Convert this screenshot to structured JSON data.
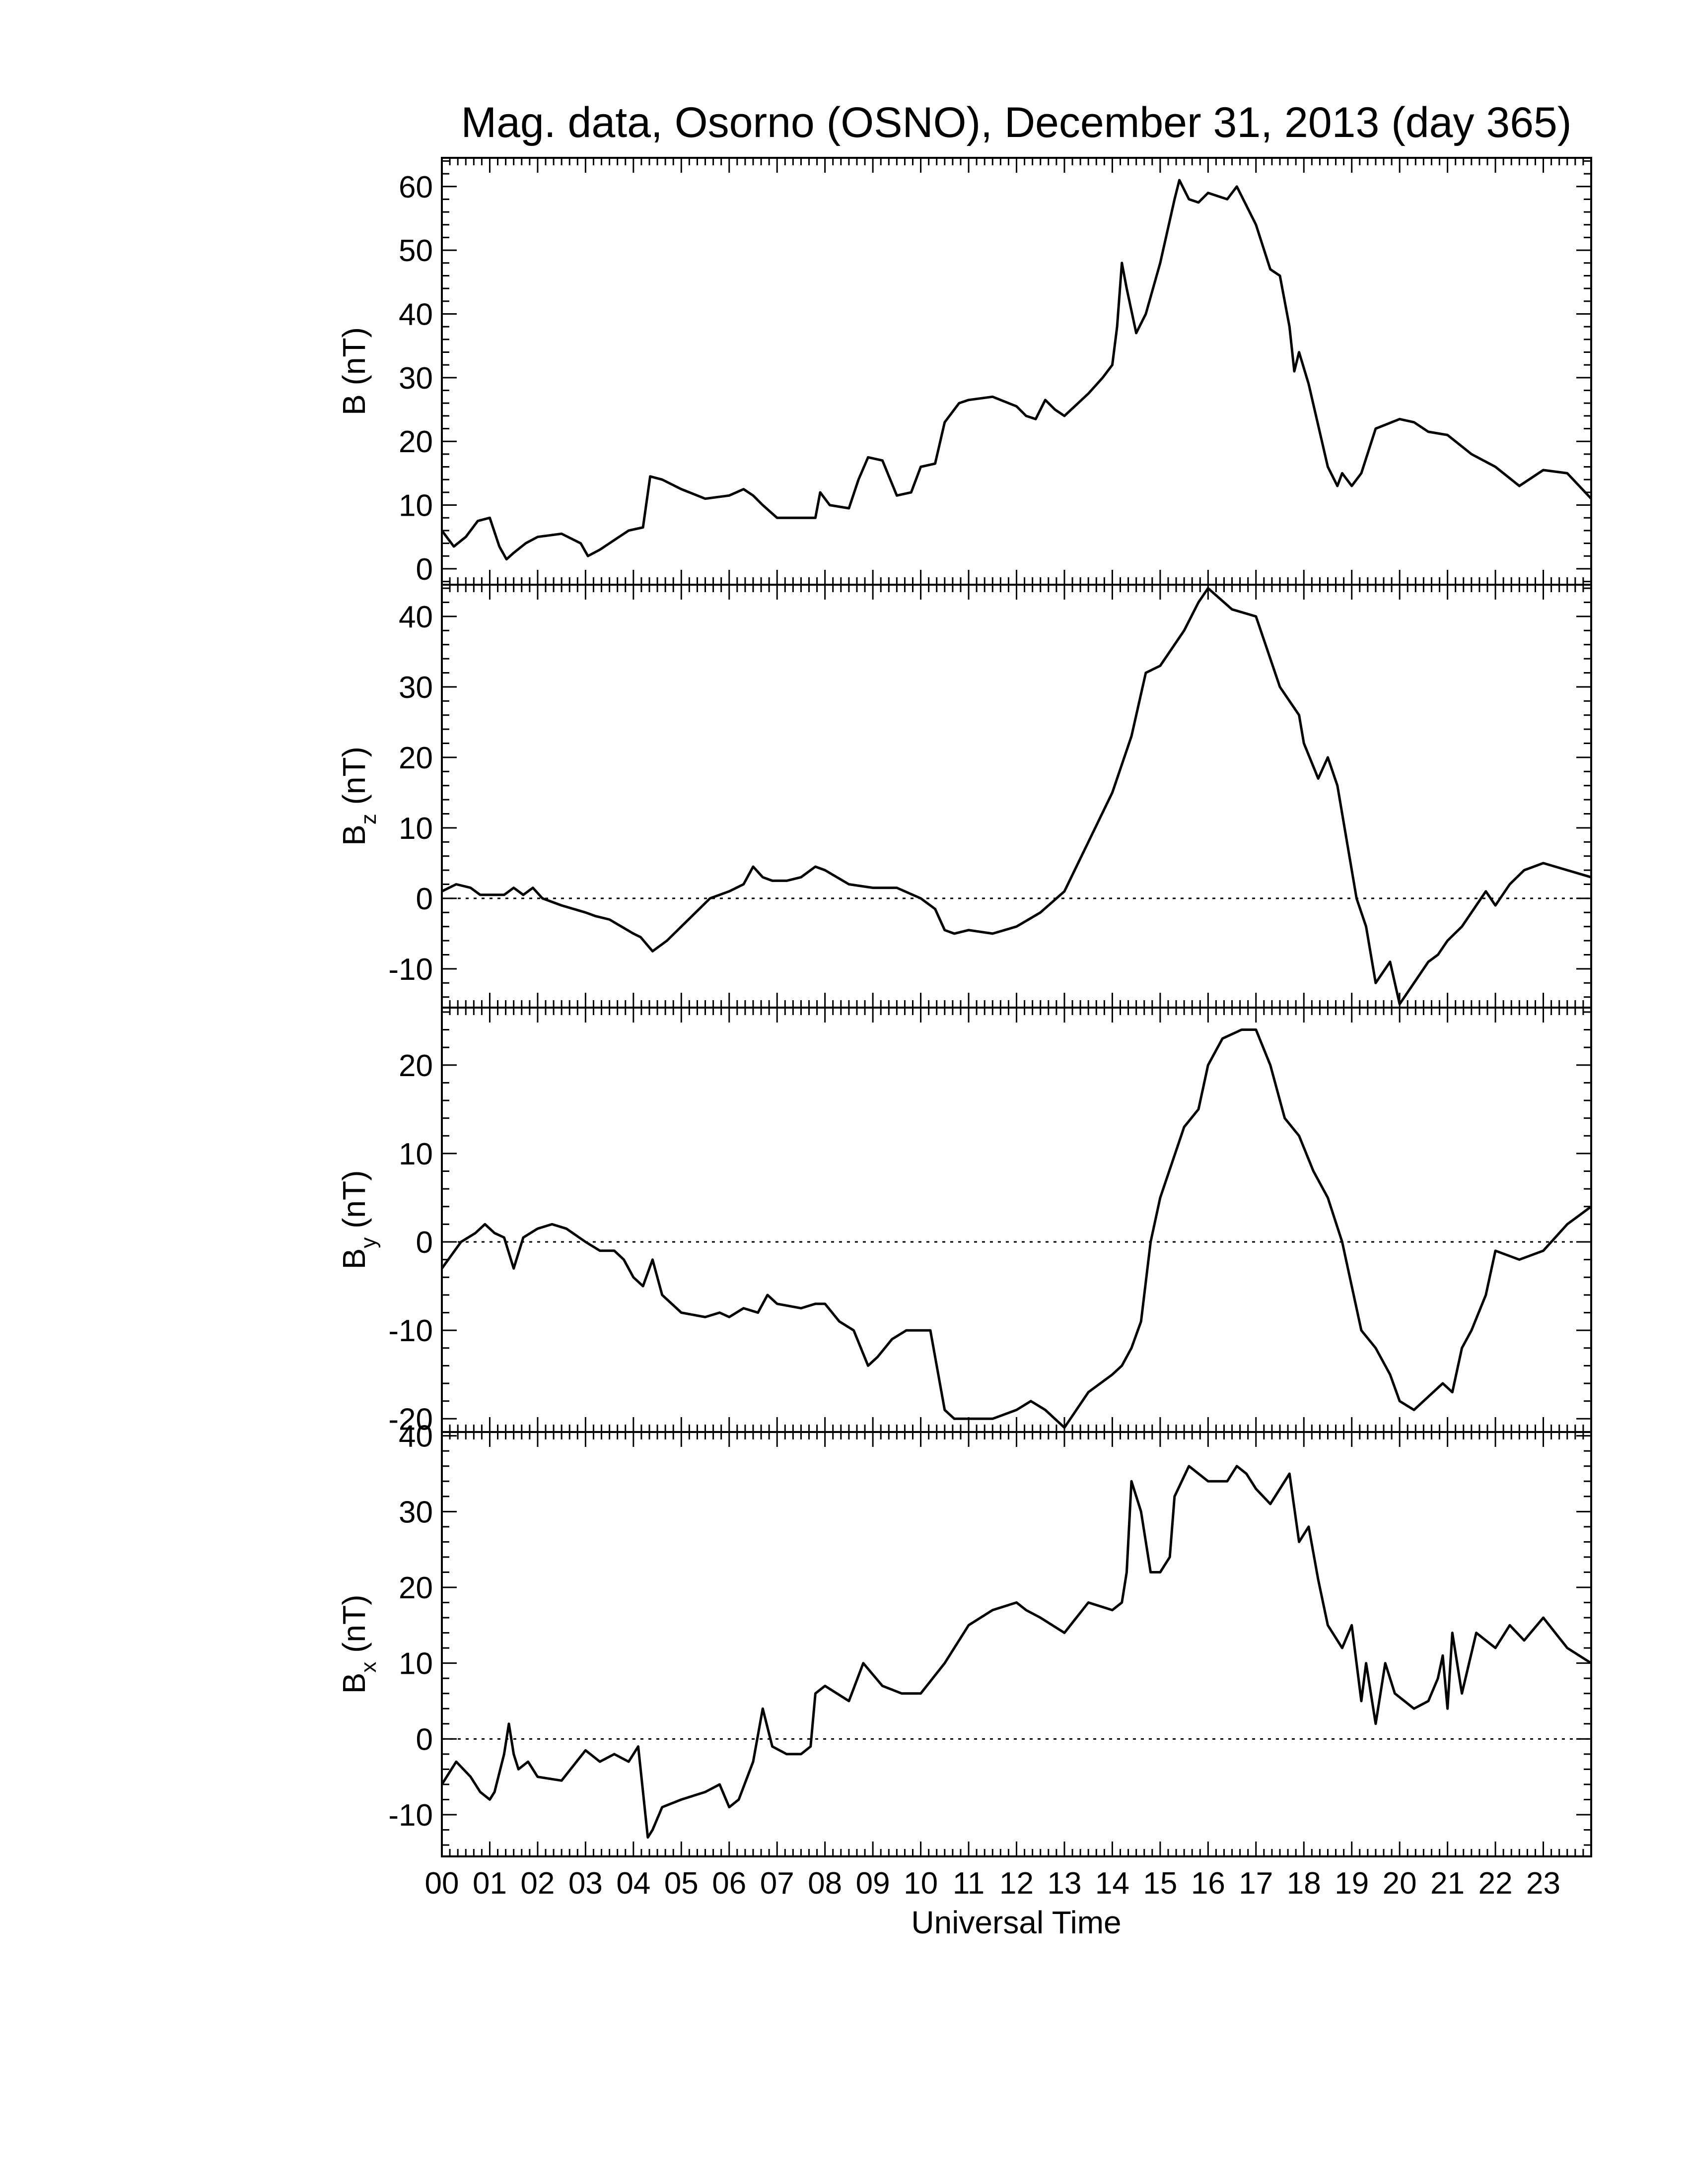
{
  "chart_data": {
    "type": "line",
    "title": "Mag. data, Osorno (OSNO), December 31, 2013 (day 365)",
    "xlabel": "Universal Time",
    "x_tick_labels": [
      "00",
      "01",
      "02",
      "03",
      "04",
      "05",
      "06",
      "07",
      "08",
      "09",
      "10",
      "11",
      "12",
      "13",
      "14",
      "15",
      "16",
      "17",
      "18",
      "19",
      "20",
      "21",
      "22",
      "23"
    ],
    "xlim": [
      0,
      24
    ],
    "panels": [
      {
        "ylabel": "B (nT)",
        "ylabel_main": "B",
        "ylabel_sub": "",
        "ylabel_unit": "(nT)",
        "ylim": [
          -2.5,
          64.5
        ],
        "yticks": [
          0,
          10,
          20,
          30,
          40,
          50,
          60
        ],
        "zero_line": false,
        "x": [
          0,
          0.25,
          0.5,
          0.75,
          1.0,
          1.2,
          1.35,
          1.5,
          1.75,
          2.0,
          2.5,
          2.9,
          3.05,
          3.3,
          3.6,
          3.9,
          4.2,
          4.35,
          4.6,
          5.0,
          5.5,
          6.0,
          6.3,
          6.5,
          6.7,
          7.0,
          7.5,
          7.8,
          7.9,
          8.1,
          8.5,
          8.7,
          8.9,
          9.2,
          9.5,
          9.8,
          10.0,
          10.3,
          10.5,
          10.8,
          11.0,
          11.5,
          12.0,
          12.2,
          12.4,
          12.6,
          12.8,
          13.0,
          13.5,
          13.8,
          14.0,
          14.1,
          14.2,
          14.3,
          14.5,
          14.7,
          15.0,
          15.3,
          15.4,
          15.6,
          15.8,
          16.0,
          16.4,
          16.6,
          16.8,
          17.0,
          17.3,
          17.5,
          17.7,
          17.8,
          17.9,
          18.1,
          18.5,
          18.7,
          18.8,
          19.0,
          19.2,
          19.5,
          20.0,
          20.3,
          20.6,
          21.0,
          21.5,
          22.0,
          22.5,
          23.0,
          23.5,
          24.0
        ],
        "values": [
          6,
          3.5,
          5,
          7.5,
          8,
          3.5,
          1.5,
          2.5,
          4,
          5,
          5.5,
          4,
          2,
          3,
          4.5,
          6,
          6.5,
          14.5,
          14,
          12.5,
          11,
          11.5,
          12.5,
          11.5,
          10,
          8,
          8,
          8,
          12,
          10,
          9.5,
          14,
          17.5,
          17,
          11.5,
          12,
          16,
          16.5,
          23,
          26,
          26.5,
          27,
          25.5,
          24,
          23.5,
          26.5,
          25,
          24,
          27.5,
          30,
          32,
          38,
          48,
          44,
          37,
          40,
          48,
          58,
          61,
          58,
          57.5,
          59,
          58,
          60,
          57,
          54,
          47,
          46,
          38,
          31,
          34,
          29,
          16,
          13,
          15,
          13,
          15,
          22,
          23.5,
          23,
          21.5,
          21,
          18,
          16,
          13,
          15.5,
          15,
          11
        ]
      },
      {
        "ylabel": "Bz (nT)",
        "ylabel_main": "B",
        "ylabel_sub": "z",
        "ylabel_unit": "(nT)",
        "ylim": [
          -15.5,
          44.5
        ],
        "yticks": [
          -10,
          0,
          10,
          20,
          30,
          40
        ],
        "zero_line": true,
        "x": [
          0,
          0.3,
          0.6,
          0.8,
          1.0,
          1.3,
          1.5,
          1.7,
          1.9,
          2.1,
          2.5,
          3.0,
          3.2,
          3.5,
          4.0,
          4.15,
          4.4,
          4.7,
          5.0,
          5.3,
          5.6,
          6.0,
          6.3,
          6.5,
          6.7,
          6.9,
          7.2,
          7.5,
          7.8,
          8.0,
          8.5,
          9.0,
          9.5,
          10.0,
          10.3,
          10.5,
          10.7,
          11.0,
          11.5,
          12.0,
          12.5,
          13.0,
          13.5,
          14.0,
          14.4,
          14.7,
          15.0,
          15.3,
          15.5,
          15.8,
          16.0,
          16.5,
          17.0,
          17.3,
          17.5,
          17.9,
          18.0,
          18.3,
          18.5,
          18.7,
          18.9,
          19.1,
          19.3,
          19.5,
          19.8,
          20.0,
          20.3,
          20.6,
          20.8,
          21.0,
          21.3,
          21.5,
          21.8,
          22.0,
          22.3,
          22.6,
          23.0,
          23.5,
          24.0
        ],
        "values": [
          1,
          2,
          1.5,
          0.5,
          0.5,
          0.5,
          1.5,
          0.5,
          1.5,
          0,
          -1,
          -2,
          -2.5,
          -3,
          -5,
          -5.5,
          -7.5,
          -6,
          -4,
          -2,
          0,
          1,
          2,
          4.5,
          3,
          2.5,
          2.5,
          3,
          4.5,
          4,
          2,
          1.5,
          1.5,
          0,
          -1.5,
          -4.5,
          -5,
          -4.5,
          -5,
          -4,
          -2,
          1,
          8,
          15,
          23,
          32,
          33,
          36,
          38,
          42,
          44,
          41,
          40,
          34,
          30,
          26,
          22,
          17,
          20,
          16,
          8,
          0,
          -4,
          -12,
          -9,
          -15,
          -12,
          -9,
          -8,
          -6,
          -4,
          -2,
          1,
          -1,
          2,
          4,
          5,
          4,
          3
        ]
      },
      {
        "ylabel": "By (nT)",
        "ylabel_main": "B",
        "ylabel_sub": "y",
        "ylabel_unit": "(nT)",
        "ylim": [
          -21.5,
          26.5
        ],
        "yticks": [
          -20,
          -10,
          0,
          10,
          20
        ],
        "zero_line": true,
        "x": [
          0,
          0.2,
          0.4,
          0.7,
          0.9,
          1.1,
          1.3,
          1.5,
          1.7,
          2.0,
          2.3,
          2.6,
          3.0,
          3.3,
          3.6,
          3.8,
          4.0,
          4.2,
          4.4,
          4.6,
          5.0,
          5.5,
          5.8,
          6.0,
          6.3,
          6.6,
          6.8,
          7.0,
          7.5,
          7.8,
          8.0,
          8.3,
          8.6,
          8.9,
          9.1,
          9.4,
          9.7,
          10.0,
          10.2,
          10.5,
          10.7,
          11.0,
          11.5,
          12.0,
          12.3,
          12.6,
          13.0,
          13.5,
          14.0,
          14.2,
          14.4,
          14.6,
          14.8,
          15.0,
          15.5,
          15.8,
          16.0,
          16.3,
          16.7,
          17.0,
          17.3,
          17.6,
          17.9,
          18.2,
          18.5,
          18.8,
          19.0,
          19.2,
          19.5,
          19.8,
          20.0,
          20.3,
          20.5,
          20.7,
          20.9,
          21.1,
          21.3,
          21.5,
          21.8,
          22.0,
          22.5,
          23.0,
          23.5,
          24.0
        ],
        "values": [
          -3,
          -1.5,
          0,
          1,
          2,
          1,
          0.5,
          -3,
          0.5,
          1.5,
          2,
          1.5,
          0,
          -1,
          -1,
          -2,
          -4,
          -5,
          -2,
          -6,
          -8,
          -8.5,
          -8,
          -8.5,
          -7.5,
          -8,
          -6,
          -7,
          -7.5,
          -7,
          -7,
          -9,
          -10,
          -14,
          -13,
          -11,
          -10,
          -10,
          -10,
          -19,
          -20,
          -20,
          -20,
          -19,
          -18,
          -19,
          -21,
          -17,
          -15,
          -14,
          -12,
          -9,
          0,
          5,
          13,
          15,
          20,
          23,
          24,
          24,
          20,
          14,
          12,
          8,
          5,
          0,
          -5,
          -10,
          -12,
          -15,
          -18,
          -19,
          -18,
          -17,
          -16,
          -17,
          -12,
          -10,
          -6,
          -1,
          -2,
          -1,
          2,
          4
        ]
      },
      {
        "ylabel": "Bx (nT)",
        "ylabel_main": "B",
        "ylabel_sub": "x",
        "ylabel_unit": "(nT)",
        "ylim": [
          -15.5,
          40.5
        ],
        "yticks": [
          -10,
          0,
          10,
          20,
          30,
          40
        ],
        "zero_line": true,
        "x": [
          0,
          0.3,
          0.6,
          0.8,
          1.0,
          1.1,
          1.3,
          1.4,
          1.5,
          1.6,
          1.8,
          2.0,
          2.5,
          3.0,
          3.3,
          3.6,
          3.9,
          4.1,
          4.3,
          4.4,
          4.6,
          5.0,
          5.5,
          5.8,
          6.0,
          6.2,
          6.5,
          6.7,
          6.9,
          7.2,
          7.5,
          7.7,
          7.8,
          8.0,
          8.5,
          8.8,
          9.2,
          9.6,
          10.0,
          10.5,
          11.0,
          11.5,
          12.0,
          12.2,
          12.5,
          13.0,
          13.5,
          14.0,
          14.2,
          14.3,
          14.4,
          14.6,
          14.8,
          15.0,
          15.2,
          15.3,
          15.6,
          16.0,
          16.4,
          16.6,
          16.8,
          17.0,
          17.3,
          17.5,
          17.7,
          17.9,
          18.1,
          18.3,
          18.5,
          18.8,
          19.0,
          19.2,
          19.3,
          19.5,
          19.7,
          19.9,
          20.1,
          20.3,
          20.6,
          20.8,
          20.9,
          21.0,
          21.1,
          21.3,
          21.6,
          22.0,
          22.3,
          22.6,
          23.0,
          23.5,
          24.0
        ],
        "values": [
          -6,
          -3,
          -5,
          -7,
          -8,
          -7,
          -2,
          2,
          -2,
          -4,
          -3,
          -5,
          -5.5,
          -1.5,
          -3,
          -2,
          -3,
          -1,
          -13,
          -12,
          -9,
          -8,
          -7,
          -6,
          -9,
          -8,
          -3,
          4,
          -1,
          -2,
          -2,
          -1,
          6,
          7,
          5,
          10,
          7,
          6,
          6,
          10,
          15,
          17,
          18,
          17,
          16,
          14,
          18,
          17,
          18,
          22,
          34,
          30,
          22,
          22,
          24,
          32,
          36,
          34,
          34,
          36,
          35,
          33,
          31,
          33,
          35,
          26,
          28,
          21,
          15,
          12,
          15,
          5,
          10,
          2,
          10,
          6,
          5,
          4,
          5,
          8,
          11,
          4,
          14,
          6,
          14,
          12,
          15,
          13,
          16,
          12,
          10
        ]
      }
    ]
  }
}
